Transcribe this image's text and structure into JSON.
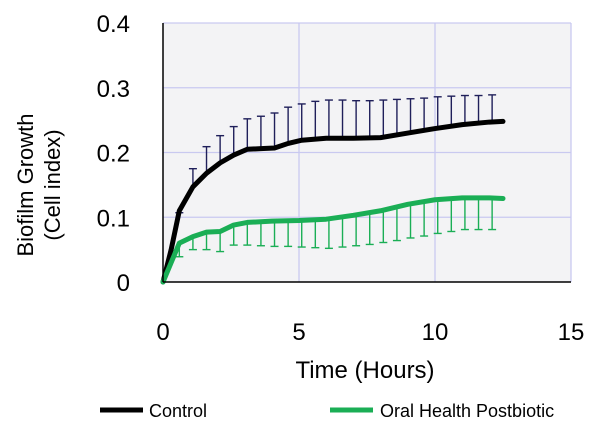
{
  "chart_data": {
    "type": "line",
    "title": "",
    "xlabel": "Time (Hours)",
    "ylabel_lines": [
      "Biofilm Growth",
      "(Cell index)"
    ],
    "xlim": [
      0,
      15
    ],
    "ylim": [
      0,
      0.4
    ],
    "xticks": [
      0,
      5,
      10,
      15
    ],
    "xtick_labels": [
      "0",
      "5",
      "10",
      "15"
    ],
    "yticks": [
      0,
      0.1,
      0.2,
      0.3,
      0.4
    ],
    "ytick_labels": [
      "0",
      "0.1",
      "0.2",
      "0.3",
      "0.4"
    ],
    "grid": true,
    "legend_placement": "bottom",
    "colors": {
      "Control": "#000000",
      "Oral Health Postbiotic": "#1aae55",
      "control_err": "#1f1f5a",
      "grid": "#c9c9f0",
      "plot_bg": "#f3f3f5"
    },
    "series": [
      {
        "name": "Control",
        "x": [
          0,
          0.3,
          0.6,
          1.1,
          1.6,
          2.1,
          2.6,
          3.1,
          3.6,
          4.1,
          4.6,
          5.1,
          6,
          7,
          8,
          9,
          10,
          11,
          12,
          12.5
        ],
        "y": [
          0,
          0.05,
          0.11,
          0.147,
          0.168,
          0.184,
          0.196,
          0.205,
          0.206,
          0.207,
          0.214,
          0.219,
          0.222,
          0.222,
          0.223,
          0.23,
          0.237,
          0.243,
          0.247,
          0.248
        ],
        "error_x": [
          0.6,
          1.1,
          1.6,
          2.1,
          2.6,
          3.1,
          3.6,
          4.1,
          4.6,
          5.1,
          5.6,
          6.1,
          6.6,
          7.1,
          7.6,
          8.1,
          8.6,
          9.1,
          9.6,
          10.1,
          10.6,
          11.1,
          11.6,
          12.1
        ],
        "error_plus": [
          0.107,
          0.175,
          0.209,
          0.226,
          0.24,
          0.252,
          0.256,
          0.261,
          0.27,
          0.275,
          0.279,
          0.281,
          0.281,
          0.28,
          0.28,
          0.281,
          0.282,
          0.283,
          0.284,
          0.286,
          0.287,
          0.288,
          0.288,
          0.289
        ],
        "error_direction": "up"
      },
      {
        "name": "Oral Health Postbiotic",
        "x": [
          0,
          0.3,
          0.6,
          1.1,
          1.6,
          2.1,
          2.6,
          3.1,
          4,
          5,
          6,
          7,
          8,
          9,
          10,
          11,
          12,
          12.5
        ],
        "y": [
          0,
          0.03,
          0.06,
          0.07,
          0.077,
          0.078,
          0.088,
          0.092,
          0.094,
          0.095,
          0.097,
          0.103,
          0.11,
          0.12,
          0.127,
          0.13,
          0.13,
          0.129
        ],
        "error_x": [
          0.6,
          1.1,
          1.6,
          2.1,
          2.6,
          3.1,
          3.6,
          4.1,
          4.6,
          5.1,
          5.6,
          6.1,
          6.6,
          7.1,
          7.6,
          8.1,
          8.6,
          9.1,
          9.6,
          10.1,
          10.6,
          11.1,
          11.6,
          12.1
        ],
        "error_minus": [
          0.039,
          0.05,
          0.05,
          0.047,
          0.057,
          0.057,
          0.056,
          0.055,
          0.055,
          0.054,
          0.053,
          0.052,
          0.054,
          0.056,
          0.058,
          0.061,
          0.064,
          0.068,
          0.071,
          0.075,
          0.078,
          0.081,
          0.081,
          0.081
        ],
        "error_direction": "down"
      }
    ]
  }
}
